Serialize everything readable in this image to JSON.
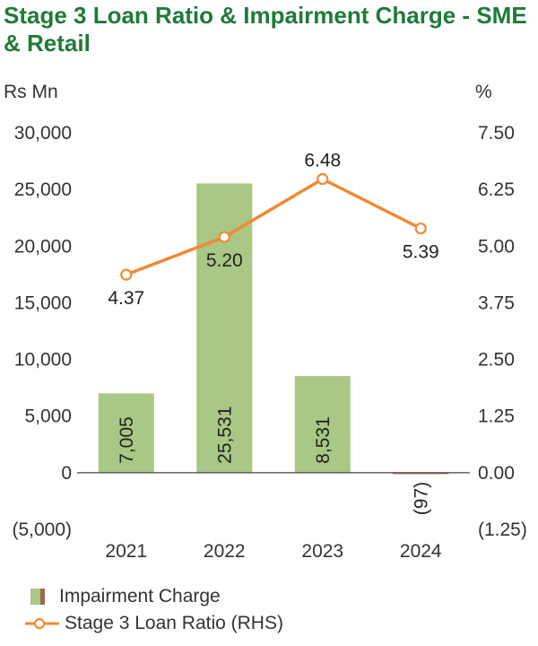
{
  "title": "Stage 3 Loan Ratio & Impairment Charge - SME & Retail",
  "colors": {
    "title": "#1f7a3a",
    "bar": "#a9c785",
    "bar_negative": "#a0684a",
    "line": "#f08a35",
    "axis": "#444444"
  },
  "chart_data": {
    "type": "bar",
    "title": "Stage 3 Loan Ratio & Impairment Charge - SME & Retail",
    "categories": [
      "2021",
      "2022",
      "2023",
      "2024"
    ],
    "left_axis": {
      "label": "Rs Mn",
      "ylim": [
        -5000,
        30000
      ],
      "ticks": [
        -5000,
        0,
        5000,
        10000,
        15000,
        20000,
        25000,
        30000
      ],
      "tick_labels": [
        "(5,000)",
        "0",
        "5,000",
        "10,000",
        "15,000",
        "20,000",
        "25,000",
        "30,000"
      ]
    },
    "right_axis": {
      "label": "%",
      "ylim": [
        -1.25,
        7.5
      ],
      "ticks": [
        -1.25,
        0,
        1.25,
        2.5,
        3.75,
        5.0,
        6.25,
        7.5
      ],
      "tick_labels": [
        "(1.25)",
        "0.00",
        "1.25",
        "2.50",
        "3.75",
        "5.00",
        "6.25",
        "7.50"
      ]
    },
    "series": [
      {
        "name": "Impairment Charge",
        "type": "bar",
        "axis": "left",
        "values": [
          7005,
          25531,
          8531,
          -97
        ],
        "labels": [
          "7,005",
          "25,531",
          "8,531",
          "(97)"
        ]
      },
      {
        "name": "Stage 3 Loan Ratio (RHS)",
        "type": "line",
        "axis": "right",
        "values": [
          4.37,
          5.2,
          6.48,
          5.39
        ],
        "labels": [
          "4.37",
          "5.20",
          "6.48",
          "5.39"
        ]
      }
    ],
    "grid": false,
    "legend_position": "bottom-left"
  }
}
